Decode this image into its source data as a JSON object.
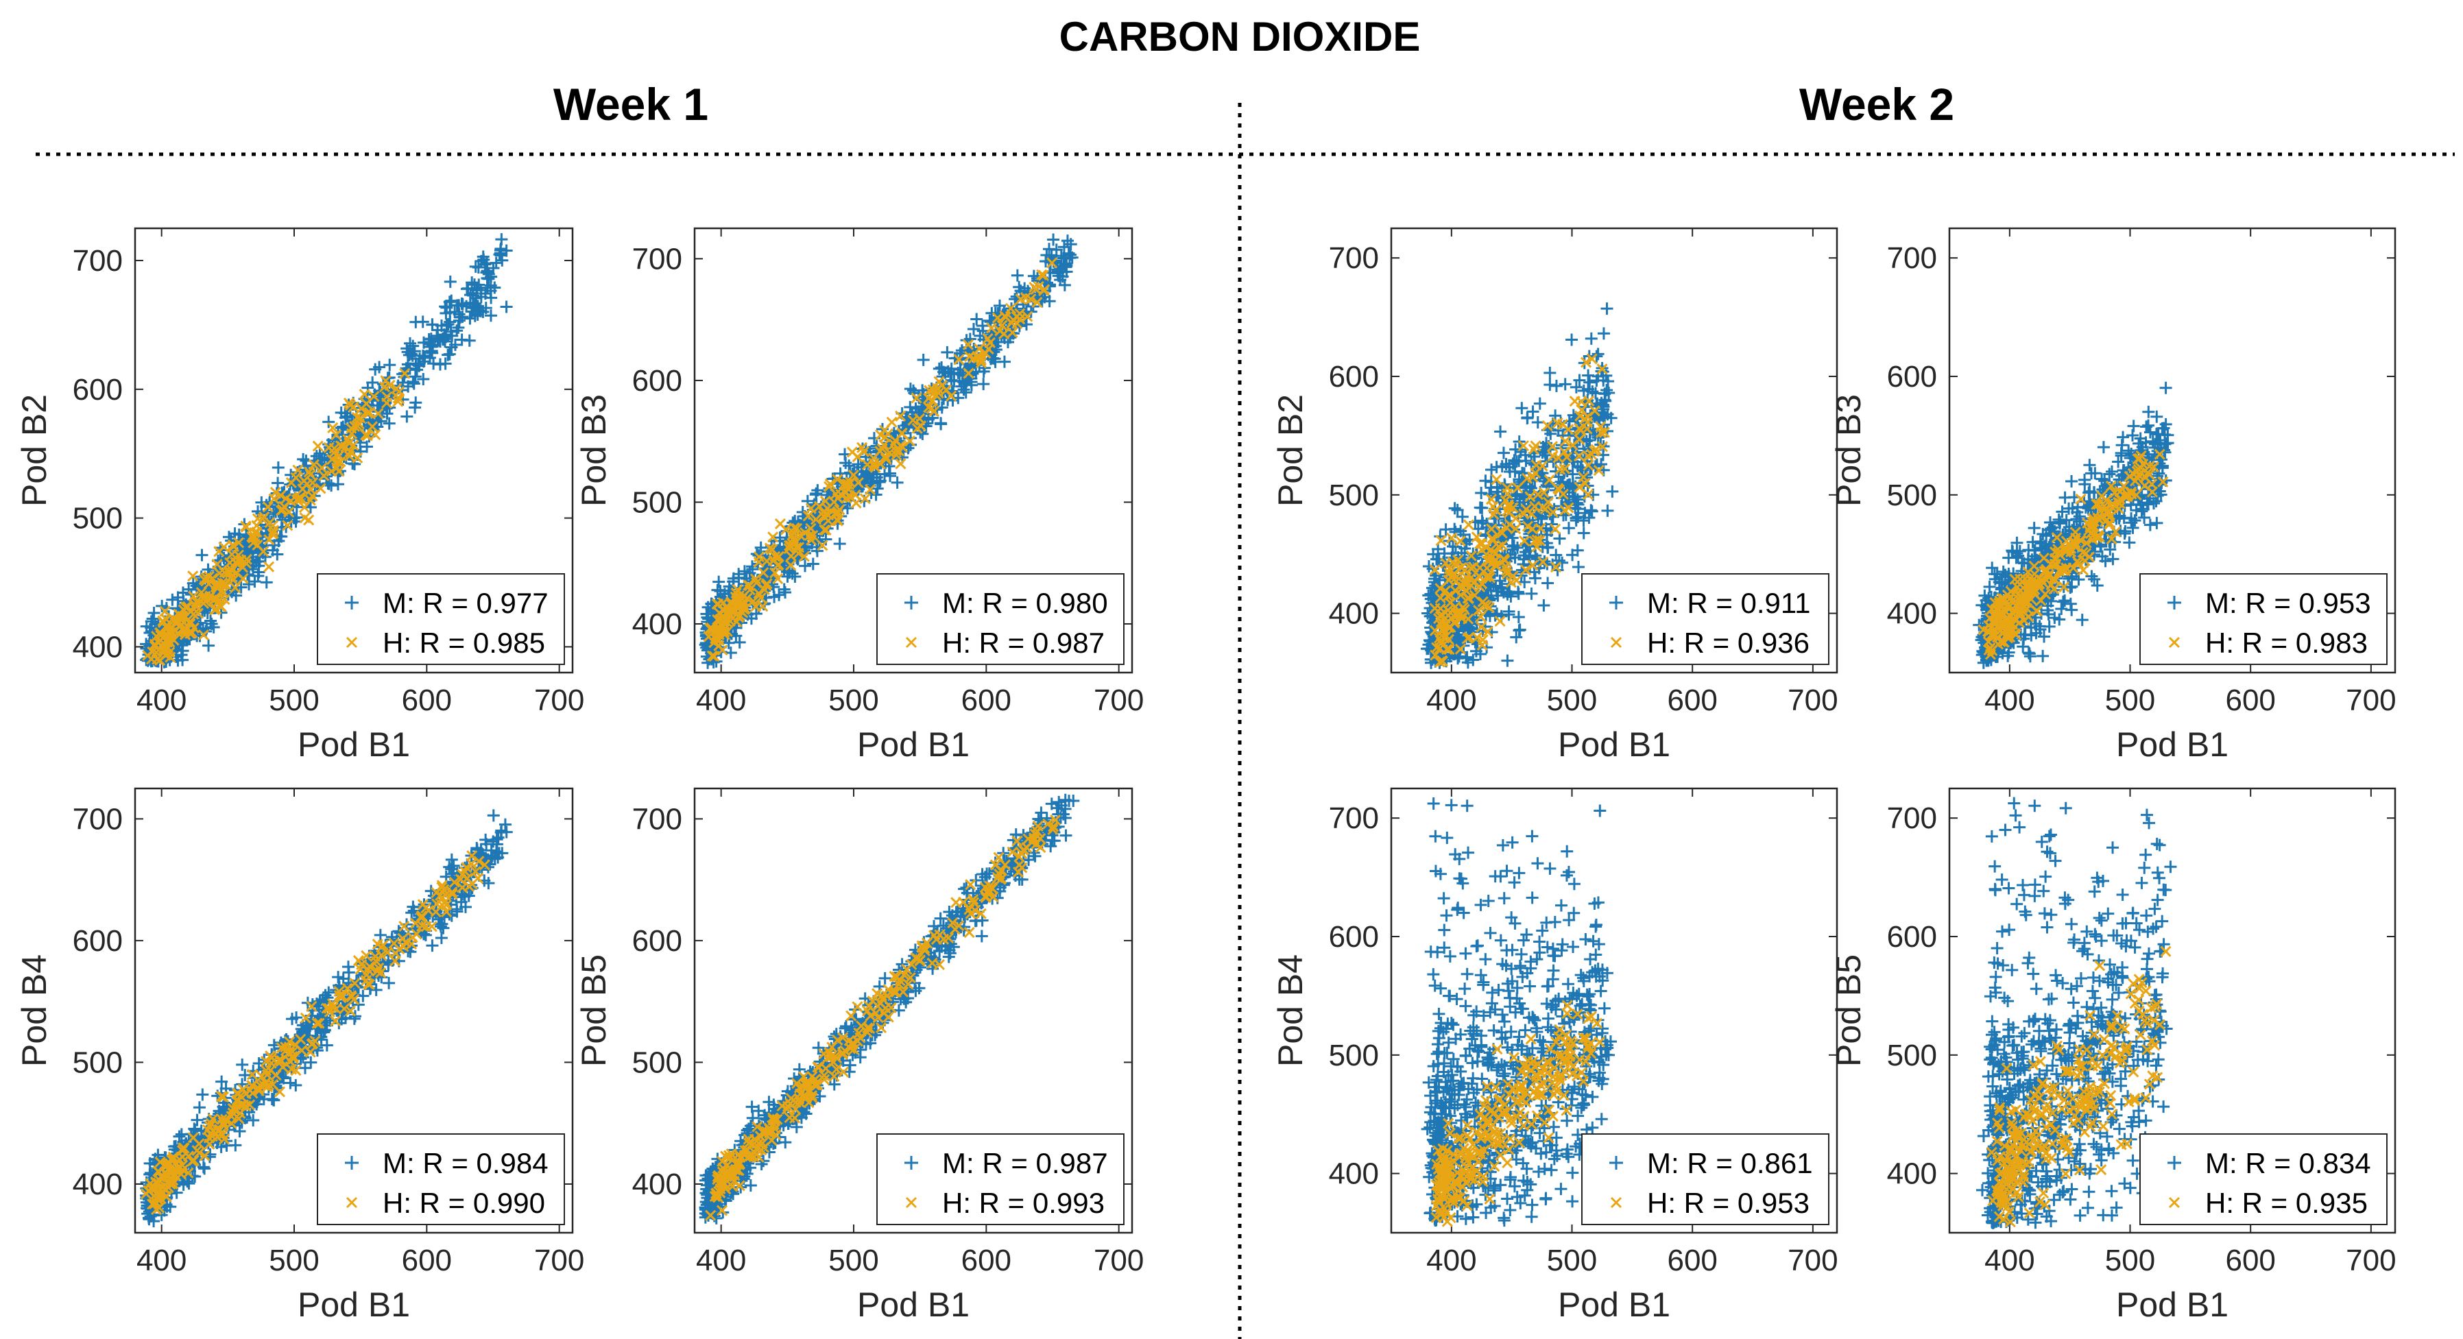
{
  "figure": {
    "title": "CARBON DIOXIDE",
    "weeks": [
      "Week 1",
      "Week 2"
    ]
  },
  "colors": {
    "M": "#1f77b4",
    "H": "#e8a614"
  },
  "chart_data": [
    {
      "type": "scatter",
      "week": "Week 1",
      "xlabel": "Pod B1",
      "ylabel": "Pod B2",
      "xlim": [
        380,
        710
      ],
      "ylim": [
        380,
        725
      ],
      "xticks": [
        400,
        500,
        600,
        700
      ],
      "yticks": [
        400,
        500,
        600,
        700
      ],
      "legend": [
        "M: R = 0.977",
        "H: R = 0.985"
      ],
      "legend_position": "bottom-right",
      "series": [
        {
          "name": "M",
          "r": 0.977,
          "x_range": [
            390,
            660
          ],
          "slope": 1.15
        },
        {
          "name": "H",
          "r": 0.985,
          "x_range": [
            395,
            580
          ],
          "slope": 1.15
        }
      ]
    },
    {
      "type": "scatter",
      "week": "Week 1",
      "xlabel": "Pod B1",
      "ylabel": "Pod B3",
      "xlim": [
        380,
        710
      ],
      "ylim": [
        360,
        725
      ],
      "xticks": [
        400,
        500,
        600,
        700
      ],
      "yticks": [
        400,
        500,
        600,
        700
      ],
      "legend": [
        "M: R = 0.980",
        "H: R = 0.987"
      ],
      "legend_position": "bottom-right",
      "series": [
        {
          "name": "M",
          "r": 0.98,
          "x_range": [
            390,
            665
          ],
          "slope": 1.15
        },
        {
          "name": "H",
          "r": 0.987,
          "x_range": [
            395,
            650
          ],
          "slope": 1.15
        }
      ]
    },
    {
      "type": "scatter",
      "week": "Week 1",
      "xlabel": "Pod B1",
      "ylabel": "Pod B4",
      "xlim": [
        380,
        710
      ],
      "ylim": [
        360,
        725
      ],
      "xticks": [
        400,
        500,
        600,
        700
      ],
      "yticks": [
        400,
        500,
        600,
        700
      ],
      "legend": [
        "M: R = 0.984",
        "H: R = 0.990"
      ],
      "legend_position": "bottom-right",
      "series": [
        {
          "name": "M",
          "r": 0.984,
          "x_range": [
            390,
            660
          ],
          "slope": 1.1
        },
        {
          "name": "H",
          "r": 0.99,
          "x_range": [
            395,
            640
          ],
          "slope": 1.1
        }
      ]
    },
    {
      "type": "scatter",
      "week": "Week 1",
      "xlabel": "Pod B1",
      "ylabel": "Pod B5",
      "xlim": [
        380,
        710
      ],
      "ylim": [
        360,
        725
      ],
      "xticks": [
        400,
        500,
        600,
        700
      ],
      "yticks": [
        400,
        500,
        600,
        700
      ],
      "legend": [
        "M: R = 0.987",
        "H: R = 0.993"
      ],
      "legend_position": "bottom-right",
      "series": [
        {
          "name": "M",
          "r": 0.987,
          "x_range": [
            390,
            665
          ],
          "slope": 1.2
        },
        {
          "name": "H",
          "r": 0.993,
          "x_range": [
            395,
            650
          ],
          "slope": 1.2
        }
      ]
    },
    {
      "type": "scatter",
      "week": "Week 2",
      "xlabel": "Pod B1",
      "ylabel": "Pod B2",
      "xlim": [
        350,
        720
      ],
      "ylim": [
        350,
        725
      ],
      "xticks": [
        400,
        500,
        600,
        700
      ],
      "yticks": [
        400,
        500,
        600,
        700
      ],
      "legend": [
        "M: R = 0.911",
        "H: R = 0.936"
      ],
      "legend_position": "bottom-right",
      "series": [
        {
          "name": "M",
          "r": 0.911,
          "x_range": [
            385,
            530
          ],
          "slope": 1.3
        },
        {
          "name": "H",
          "r": 0.936,
          "x_range": [
            390,
            525
          ],
          "slope": 1.3
        }
      ]
    },
    {
      "type": "scatter",
      "week": "Week 2",
      "xlabel": "Pod B1",
      "ylabel": "Pod B3",
      "xlim": [
        350,
        720
      ],
      "ylim": [
        350,
        725
      ],
      "xticks": [
        400,
        500,
        600,
        700
      ],
      "yticks": [
        400,
        500,
        600,
        700
      ],
      "legend": [
        "M: R = 0.953",
        "H: R = 0.983"
      ],
      "legend_position": "bottom-right",
      "series": [
        {
          "name": "M",
          "r": 0.953,
          "x_range": [
            380,
            530
          ],
          "slope": 1.05
        },
        {
          "name": "H",
          "r": 0.983,
          "x_range": [
            385,
            525
          ],
          "slope": 1.05
        }
      ]
    },
    {
      "type": "scatter",
      "week": "Week 2",
      "xlabel": "Pod B1",
      "ylabel": "Pod B4",
      "xlim": [
        350,
        720
      ],
      "ylim": [
        350,
        725
      ],
      "xticks": [
        400,
        500,
        600,
        700
      ],
      "yticks": [
        400,
        500,
        600,
        700
      ],
      "legend": [
        "M: R = 0.861",
        "H: R = 0.953"
      ],
      "legend_position": "bottom-right",
      "series": [
        {
          "name": "M",
          "r": 0.861,
          "x_range": [
            385,
            530
          ],
          "slope": 1.0
        },
        {
          "name": "H",
          "r": 0.953,
          "x_range": [
            390,
            520
          ],
          "slope": 1.0
        }
      ]
    },
    {
      "type": "scatter",
      "week": "Week 2",
      "xlabel": "Pod B1",
      "ylabel": "Pod B5",
      "xlim": [
        350,
        720
      ],
      "ylim": [
        350,
        725
      ],
      "xticks": [
        400,
        500,
        600,
        700
      ],
      "yticks": [
        400,
        500,
        600,
        700
      ],
      "legend": [
        "M: R = 0.834",
        "H: R = 0.935"
      ],
      "legend_position": "bottom-right",
      "series": [
        {
          "name": "M",
          "r": 0.834,
          "x_range": [
            385,
            530
          ],
          "slope": 1.1
        },
        {
          "name": "H",
          "r": 0.935,
          "x_range": [
            390,
            525
          ],
          "slope": 1.1
        }
      ]
    }
  ]
}
